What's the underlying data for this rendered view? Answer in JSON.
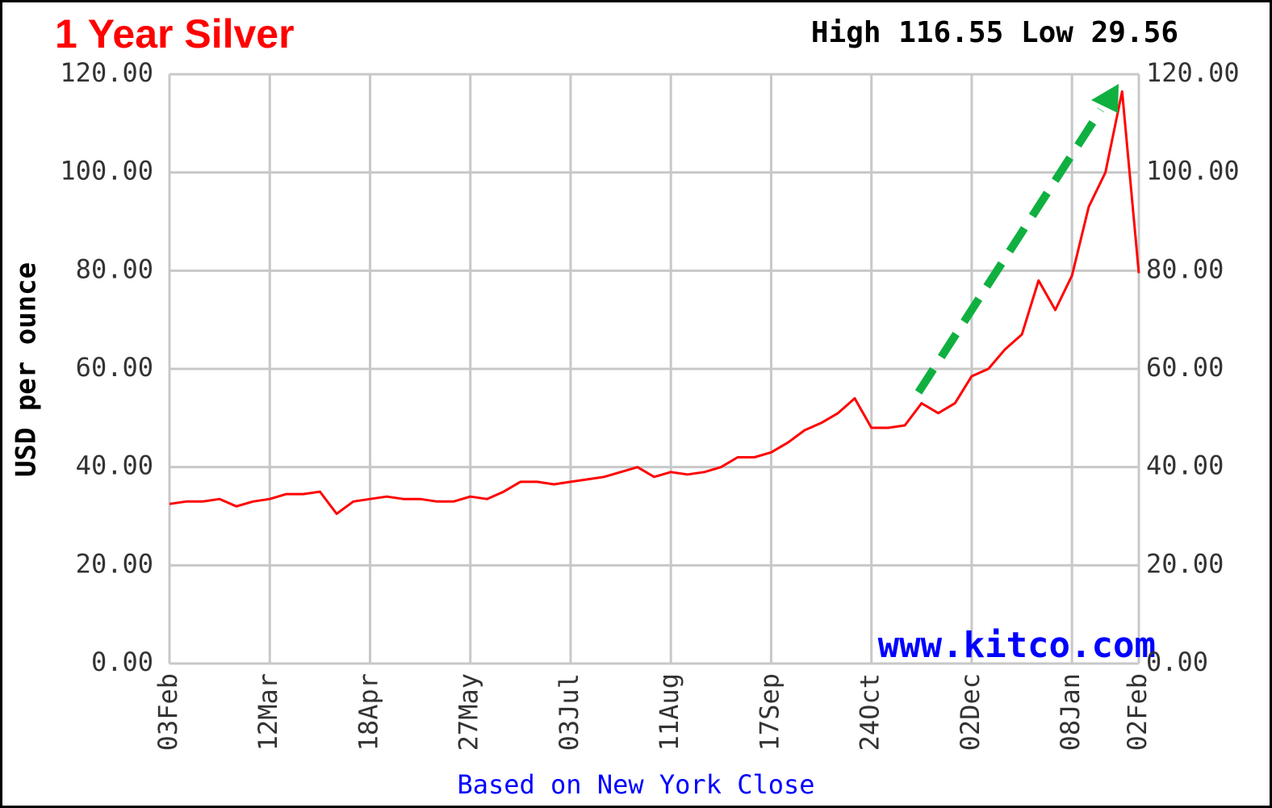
{
  "chart_data": {
    "type": "line",
    "title": "1 Year Silver",
    "subtitle": "High 116.55 Low 29.56",
    "y_label": "USD per ounce",
    "x_note": "Based on New York Close",
    "watermark": "www.kitco.com",
    "categories": [
      "03Feb",
      null,
      null,
      null,
      null,
      null,
      "12Mar",
      null,
      null,
      null,
      null,
      null,
      "18Apr",
      null,
      null,
      null,
      null,
      null,
      "27May",
      null,
      null,
      null,
      null,
      null,
      "03Jul",
      null,
      null,
      null,
      null,
      null,
      "11Aug",
      null,
      null,
      null,
      null,
      null,
      "17Sep",
      null,
      null,
      null,
      null,
      null,
      "24Oct",
      null,
      null,
      null,
      null,
      null,
      "02Dec",
      null,
      null,
      null,
      null,
      null,
      "08Jan",
      null,
      null,
      null,
      "02Feb"
    ],
    "series": [
      {
        "name": "Silver",
        "color": "#ff0000",
        "values": [
          32.5,
          33,
          33,
          33.5,
          32,
          33,
          33.5,
          34.5,
          34.5,
          35,
          30.5,
          33,
          33.5,
          34,
          33.5,
          33.5,
          33,
          33,
          34,
          33.5,
          35,
          37,
          37,
          36.5,
          37,
          37.5,
          38,
          39,
          40,
          38,
          39,
          38.5,
          39,
          40,
          42,
          42,
          43,
          45,
          47.5,
          49,
          51,
          54,
          48,
          48,
          48.5,
          53,
          51,
          53,
          58.5,
          60,
          64,
          67,
          78,
          72,
          79,
          93,
          100,
          116.5,
          79.5
        ]
      }
    ],
    "ylim": [
      0,
      120
    ],
    "yticks": [
      {
        "value": 0,
        "label": "0.00"
      },
      {
        "value": 20,
        "label": "20.00"
      },
      {
        "value": 40,
        "label": "40.00"
      },
      {
        "value": 60,
        "label": "60.00"
      },
      {
        "value": 80,
        "label": "80.00"
      },
      {
        "value": 100,
        "label": "100.00"
      },
      {
        "value": 120,
        "label": "120.00"
      }
    ],
    "y2lim": [
      0,
      120
    ],
    "y2ticks": [
      {
        "value": 0,
        "label": "0.00"
      },
      {
        "value": 20,
        "label": "20.00"
      },
      {
        "value": 40,
        "label": "40.00"
      },
      {
        "value": 60,
        "label": "60.00"
      },
      {
        "value": 80,
        "label": "80.00"
      },
      {
        "value": 100,
        "label": "100.00"
      },
      {
        "value": 120,
        "label": "120.00"
      }
    ],
    "grid": true
  }
}
